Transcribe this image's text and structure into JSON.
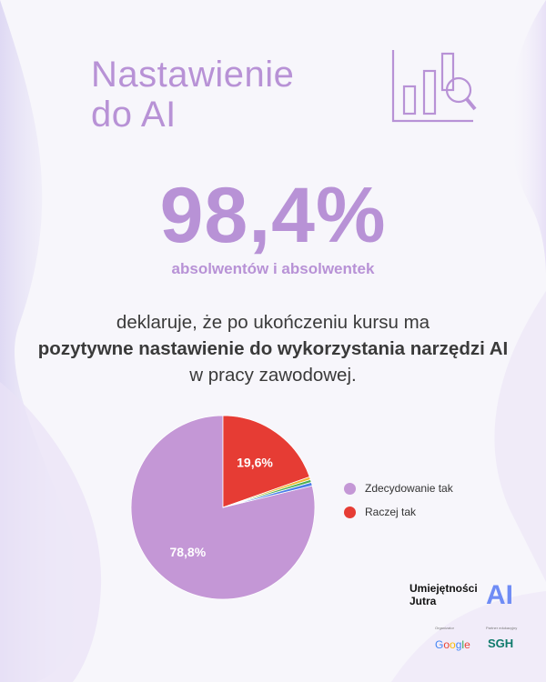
{
  "title": {
    "line1": "Nastawienie",
    "line2": "do AI"
  },
  "headline": {
    "value": "98,4%",
    "subject": "absolwentów i absolwentek"
  },
  "description": {
    "part1": "deklaruje, że po ukończeniu kursu ma",
    "bold": "pozytywne nastawienie do wykorzystania narzędzi AI",
    "part2": "w pracy zawodowej."
  },
  "chart_data": {
    "type": "pie",
    "slices": [
      {
        "label": "Zdecydowanie tak",
        "value": 78.8,
        "display": "78,8%",
        "color": "#c497d6"
      },
      {
        "label": "Raczej tak",
        "value": 19.6,
        "display": "19,6%",
        "color": "#e63c34"
      },
      {
        "label": "",
        "value": 0.5,
        "display": "",
        "color": "#f2b630"
      },
      {
        "label": "",
        "value": 0.5,
        "display": "",
        "color": "#4caf50"
      },
      {
        "label": "",
        "value": 0.6,
        "display": "",
        "color": "#4a7ee8"
      }
    ],
    "legend": [
      {
        "label": "Zdecydowanie tak",
        "color": "#c497d6"
      },
      {
        "label": "Raczej tak",
        "color": "#e63c34"
      }
    ],
    "legend_position": "right"
  },
  "brand": {
    "line1": "Umiejętności",
    "line2": "Jutra",
    "ai": "AI"
  },
  "partners": {
    "organizer_label": "Organizator",
    "partner_label": "Partner edukacyjny",
    "google": "Google",
    "sgh": "SGH"
  },
  "colors": {
    "accent": "#b892d6",
    "text": "#3a3a3a"
  },
  "icons": {
    "header_icon": "bar-chart-magnifier-icon"
  }
}
